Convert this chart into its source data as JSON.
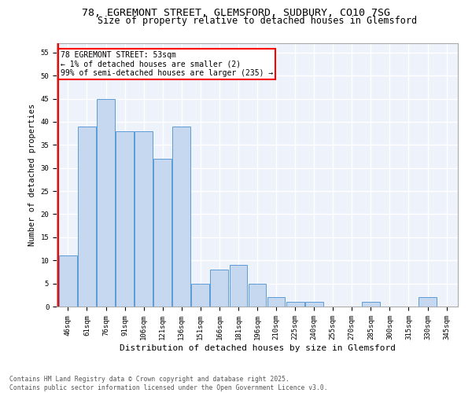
{
  "title": "78, EGREMONT STREET, GLEMSFORD, SUDBURY, CO10 7SG",
  "subtitle": "Size of property relative to detached houses in Glemsford",
  "xlabel": "Distribution of detached houses by size in Glemsford",
  "ylabel": "Number of detached properties",
  "categories": [
    "46sqm",
    "61sqm",
    "76sqm",
    "91sqm",
    "106sqm",
    "121sqm",
    "136sqm",
    "151sqm",
    "166sqm",
    "181sqm",
    "196sqm",
    "210sqm",
    "225sqm",
    "240sqm",
    "255sqm",
    "270sqm",
    "285sqm",
    "300sqm",
    "315sqm",
    "330sqm",
    "345sqm"
  ],
  "values": [
    11,
    39,
    45,
    38,
    38,
    32,
    39,
    5,
    8,
    9,
    5,
    2,
    1,
    1,
    0,
    0,
    1,
    0,
    0,
    2,
    0
  ],
  "bar_color": "#c5d8f0",
  "bar_edge_color": "#5b9bd5",
  "annotation_text": "78 EGREMONT STREET: 53sqm\n← 1% of detached houses are smaller (2)\n99% of semi-detached houses are larger (235) →",
  "annotation_box_color": "white",
  "annotation_box_edge_color": "red",
  "vline_color": "red",
  "ylim": [
    0,
    57
  ],
  "yticks": [
    0,
    5,
    10,
    15,
    20,
    25,
    30,
    35,
    40,
    45,
    50,
    55
  ],
  "background_color": "#eef2fa",
  "grid_color": "white",
  "footer": "Contains HM Land Registry data © Crown copyright and database right 2025.\nContains public sector information licensed under the Open Government Licence v3.0.",
  "title_fontsize": 9.5,
  "subtitle_fontsize": 8.5,
  "xlabel_fontsize": 8,
  "ylabel_fontsize": 7.5,
  "tick_fontsize": 6.5,
  "footer_fontsize": 5.8,
  "annot_fontsize": 7
}
